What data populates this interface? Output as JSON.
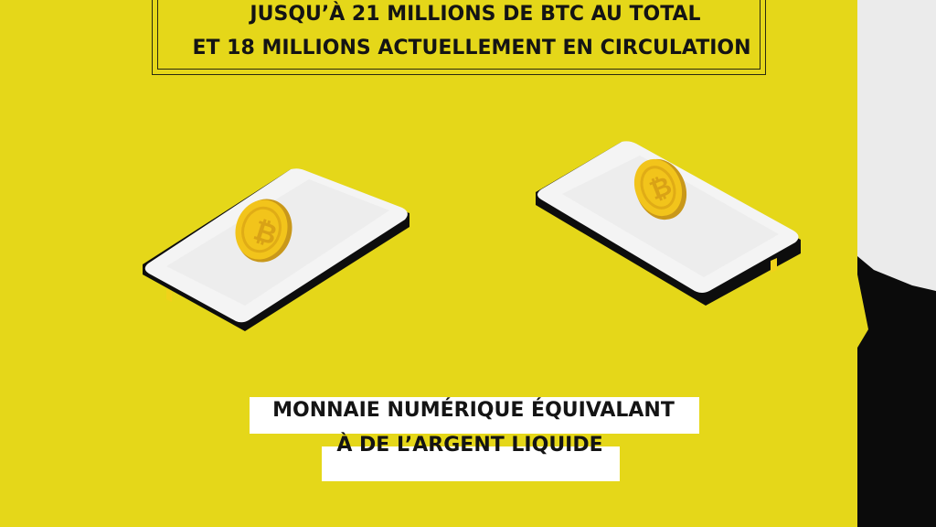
{
  "headline": {
    "line1": "JUSQU’À 21 MILLIONS DE BTC AU TOTAL",
    "line2": "ET 18 MILLIONS ACTUELLEMENT EN CIRCULATION"
  },
  "caption": {
    "line1": "MONNAIE NUMÉRIQUE ÉQUIVALANT",
    "line2": "À DE L’ARGENT LIQUIDE"
  },
  "colors": {
    "background": "#e5d719",
    "coin": "#f2c41b",
    "phone_screen": "#f4f4f4",
    "text": "#141414"
  },
  "icons": [
    "smartphone-icon",
    "bitcoin-coin-icon"
  ]
}
